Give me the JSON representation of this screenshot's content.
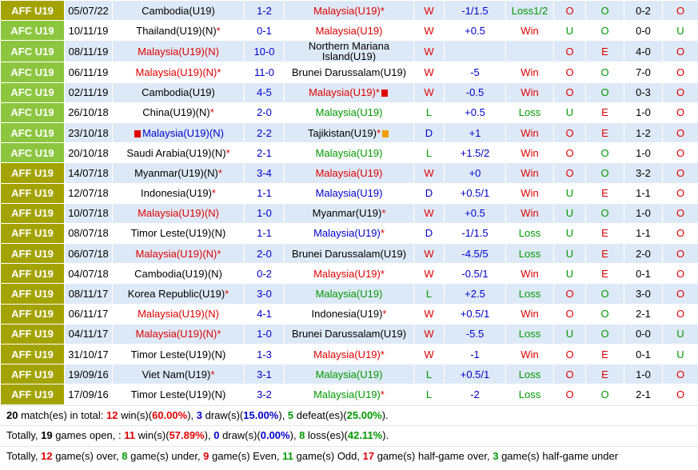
{
  "table": {
    "rows": [
      {
        "league": "AFF U19",
        "date": "05/07/22",
        "home": "Cambodia(U19)",
        "score": "1-2",
        "away": "Malaysia(U19)",
        "away_note": "*",
        "away_color": "#e00000",
        "result": "W",
        "handicap": "-1/1.5",
        "handicap_result": "Loss1/2",
        "ou": "O",
        "oe": "O",
        "half_score": "0-2",
        "half_ou": "O"
      },
      {
        "league": "AFC U19",
        "date": "10/11/19",
        "home": "Thailand(U19)(N)",
        "home_note": "*",
        "score": "0-1",
        "away": "Malaysia(U19)",
        "away_color": "#e00000",
        "result": "W",
        "handicap": "+0.5",
        "handicap_result": "Win",
        "ou": "U",
        "oe": "O",
        "half_score": "0-0",
        "half_ou": "U"
      },
      {
        "league": "AFC U19",
        "date": "08/11/19",
        "home": "Malaysia(U19)(N)",
        "home_color": "#e00000",
        "score": "10-0",
        "away": "Northern Mariana Island(U19)",
        "result": "W",
        "ou": "O",
        "oe": "E",
        "half_score": "4-0",
        "half_ou": "O"
      },
      {
        "league": "AFC U19",
        "date": "06/11/19",
        "home": "Malaysia(U19)(N)",
        "home_note": "*",
        "home_color": "#e00000",
        "score": "11-0",
        "away": "Brunei Darussalam(U19)",
        "result": "W",
        "handicap": "-5",
        "handicap_result": "Win",
        "ou": "O",
        "oe": "O",
        "half_score": "7-0",
        "half_ou": "O"
      },
      {
        "league": "AFC U19",
        "date": "02/11/19",
        "home": "Cambodia(U19)",
        "score": "4-5",
        "away": "Malaysia(U19)",
        "away_note": "*",
        "away_color": "#e00000",
        "result": "W",
        "handicap": "-0.5",
        "handicap_result": "Win",
        "ou": "O",
        "oe": "O",
        "half_score": "0-3",
        "half_ou": "O"
      },
      {
        "league": "AFC U19",
        "date": "26/10/18",
        "home": "China(U19)(N)",
        "home_note": "*",
        "score": "2-0",
        "away": "Malaysia(U19)",
        "away_color": "#009900",
        "result": "L",
        "handicap": "+0.5",
        "handicap_result": "Loss",
        "ou": "U",
        "oe": "E",
        "half_score": "1-0",
        "half_ou": "O"
      },
      {
        "league": "AFC U19",
        "date": "23/10/18",
        "home": "Malaysia(U19)(N)",
        "home_color": "#0000cc",
        "score": "2-2",
        "away": "Tajikistan(U19)",
        "away_note": "*",
        "result": "D",
        "handicap": "+1",
        "handicap_result": "Win",
        "ou": "O",
        "oe": "E",
        "half_score": "1-2",
        "half_ou": "O"
      },
      {
        "league": "AFC U19",
        "date": "20/10/18",
        "home": "Saudi Arabia(U19)(N)",
        "home_note": "*",
        "score": "2-1",
        "away": "Malaysia(U19)",
        "away_color": "#009900",
        "result": "L",
        "handicap": "+1.5/2",
        "handicap_result": "Win",
        "ou": "O",
        "oe": "O",
        "half_score": "1-0",
        "half_ou": "O"
      },
      {
        "league": "AFF U19",
        "date": "14/07/18",
        "home": "Myanmar(U19)(N)",
        "home_note": "*",
        "score": "3-4",
        "away": "Malaysia(U19)",
        "away_color": "#e00000",
        "result": "W",
        "handicap": "+0",
        "handicap_result": "Win",
        "ou": "O",
        "oe": "O",
        "half_score": "3-2",
        "half_ou": "O"
      },
      {
        "league": "AFF U19",
        "date": "12/07/18",
        "home": "Indonesia(U19)",
        "home_note": "*",
        "score": "1-1",
        "away": "Malaysia(U19)",
        "away_color": "#0000cc",
        "result": "D",
        "handicap": "+0.5/1",
        "handicap_result": "Win",
        "ou": "U",
        "oe": "E",
        "half_score": "1-1",
        "half_ou": "O"
      },
      {
        "league": "AFF U19",
        "date": "10/07/18",
        "home": "Malaysia(U19)(N)",
        "home_color": "#e00000",
        "score": "1-0",
        "away": "Myanmar(U19)",
        "away_note": "*",
        "result": "W",
        "handicap": "+0.5",
        "handicap_result": "Win",
        "ou": "U",
        "oe": "O",
        "half_score": "1-0",
        "half_ou": "O"
      },
      {
        "league": "AFF U19",
        "date": "08/07/18",
        "home": "Timor Leste(U19)(N)",
        "score": "1-1",
        "away": "Malaysia(U19)",
        "away_note": "*",
        "away_color": "#0000cc",
        "result": "D",
        "handicap": "-1/1.5",
        "handicap_result": "Loss",
        "ou": "U",
        "oe": "E",
        "half_score": "1-1",
        "half_ou": "O"
      },
      {
        "league": "AFF U19",
        "date": "06/07/18",
        "home": "Malaysia(U19)(N)",
        "home_note": "*",
        "home_color": "#e00000",
        "score": "2-0",
        "away": "Brunei Darussalam(U19)",
        "result": "W",
        "handicap": "-4.5/5",
        "handicap_result": "Loss",
        "ou": "U",
        "oe": "E",
        "half_score": "2-0",
        "half_ou": "O"
      },
      {
        "league": "AFF U19",
        "date": "04/07/18",
        "home": "Cambodia(U19)(N)",
        "score": "0-2",
        "away": "Malaysia(U19)",
        "away_note": "*",
        "away_color": "#e00000",
        "result": "W",
        "handicap": "-0.5/1",
        "handicap_result": "Win",
        "ou": "U",
        "oe": "E",
        "half_score": "0-1",
        "half_ou": "O"
      },
      {
        "league": "AFF U19",
        "date": "08/11/17",
        "home": "Korea Republic(U19)",
        "home_note": "*",
        "score": "3-0",
        "away": "Malaysia(U19)",
        "away_color": "#009900",
        "result": "L",
        "handicap": "+2.5",
        "handicap_result": "Loss",
        "ou": "O",
        "oe": "O",
        "half_score": "3-0",
        "half_ou": "O"
      },
      {
        "league": "AFF U19",
        "date": "06/11/17",
        "home": "Malaysia(U19)(N)",
        "home_color": "#e00000",
        "score": "4-1",
        "away": "Indonesia(U19)",
        "away_note": "*",
        "result": "W",
        "handicap": "+0.5/1",
        "handicap_result": "Win",
        "ou": "O",
        "oe": "O",
        "half_score": "2-1",
        "half_ou": "O"
      },
      {
        "league": "AFF U19",
        "date": "04/11/17",
        "home": "Malaysia(U19)(N)",
        "home_note": "*",
        "home_color": "#e00000",
        "score": "1-0",
        "away": "Brunei Darussalam(U19)",
        "result": "W",
        "handicap": "-5.5",
        "handicap_result": "Loss",
        "ou": "U",
        "oe": "O",
        "half_score": "0-0",
        "half_ou": "U"
      },
      {
        "league": "AFF U19",
        "date": "31/10/17",
        "home": "Timor Leste(U19)(N)",
        "score": "1-3",
        "away": "Malaysia(U19)",
        "away_note": "*",
        "away_color": "#e00000",
        "result": "W",
        "handicap": "-1",
        "handicap_result": "Win",
        "ou": "O",
        "oe": "E",
        "half_score": "0-1",
        "half_ou": "U"
      },
      {
        "league": "AFF U19",
        "date": "19/09/16",
        "home": "Viet Nam(U19)",
        "home_note": "*",
        "score": "3-1",
        "away": "Malaysia(U19)",
        "away_color": "#009900",
        "result": "L",
        "handicap": "+0.5/1",
        "handicap_result": "Loss",
        "ou": "O",
        "oe": "E",
        "half_score": "1-0",
        "half_ou": "O"
      },
      {
        "league": "AFF U19",
        "date": "17/09/16",
        "home": "Timor Leste(U19)(N)",
        "score": "3-2",
        "away": "Malaysia(U19)",
        "away_note": "*",
        "away_color": "#009900",
        "result": "L",
        "handicap": "-2",
        "handicap_result": "Loss",
        "ou": "O",
        "oe": "O",
        "half_score": "2-1",
        "half_ou": "O"
      }
    ],
    "column_colors": {
      "league": {
        "AFF U19": "#a3a300",
        "AFC U19": "#8cc63f"
      },
      "result": {
        "W": "#e00000",
        "L": "#009900",
        "D": "#0000cc"
      },
      "handicap_result": {
        "Win": "#e00000",
        "Loss": "#009900",
        "Loss1/2": "#009900"
      },
      "ou": {
        "O": "#e00000",
        "U": "#009900"
      },
      "oe": {
        "O": "#009900",
        "E": "#e00000"
      },
      "half_ou": {
        "O": "#e00000",
        "U": "#009900"
      }
    }
  },
  "summary": [
    [
      {
        "text": "20",
        "color": "#000",
        "bold": true
      },
      {
        "text": " match(es) in total: "
      },
      {
        "text": "12",
        "color": "#e00000",
        "bold": true
      },
      {
        "text": " win(s)("
      },
      {
        "text": "60.00%",
        "color": "#e00000",
        "bold": true
      },
      {
        "text": "), "
      },
      {
        "text": "3",
        "color": "#0000cc",
        "bold": true
      },
      {
        "text": " draw(s)("
      },
      {
        "text": "15.00%",
        "color": "#0000cc",
        "bold": true
      },
      {
        "text": "), "
      },
      {
        "text": "5",
        "color": "#009900",
        "bold": true
      },
      {
        "text": " defeat(es)("
      },
      {
        "text": "25.00%",
        "color": "#009900",
        "bold": true
      },
      {
        "text": ")."
      }
    ],
    [
      {
        "text": "Totally, "
      },
      {
        "text": "19",
        "color": "#000",
        "bold": true
      },
      {
        "text": " games open, : "
      },
      {
        "text": "11",
        "color": "#e00000",
        "bold": true
      },
      {
        "text": " win(s)("
      },
      {
        "text": "57.89%",
        "color": "#e00000",
        "bold": true
      },
      {
        "text": "), "
      },
      {
        "text": "0",
        "color": "#0000cc",
        "bold": true
      },
      {
        "text": " draw(s)("
      },
      {
        "text": "0.00%",
        "color": "#0000cc",
        "bold": true
      },
      {
        "text": "), "
      },
      {
        "text": "8",
        "color": "#009900",
        "bold": true
      },
      {
        "text": " loss(es)("
      },
      {
        "text": "42.11%",
        "color": "#009900",
        "bold": true
      },
      {
        "text": ")."
      }
    ],
    [
      {
        "text": "Totally, "
      },
      {
        "text": "12",
        "color": "#e00000",
        "bold": true
      },
      {
        "text": " game(s) over, "
      },
      {
        "text": "8",
        "color": "#009900",
        "bold": true
      },
      {
        "text": " game(s) under, "
      },
      {
        "text": "9",
        "color": "#e00000",
        "bold": true
      },
      {
        "text": " game(s) Even, "
      },
      {
        "text": "11",
        "color": "#009900",
        "bold": true
      },
      {
        "text": " game(s) Odd, "
      },
      {
        "text": "17",
        "color": "#e00000",
        "bold": true
      },
      {
        "text": " game(s) half-game over, "
      },
      {
        "text": "3",
        "color": "#009900",
        "bold": true
      },
      {
        "text": " game(s) half-game under"
      }
    ]
  ]
}
